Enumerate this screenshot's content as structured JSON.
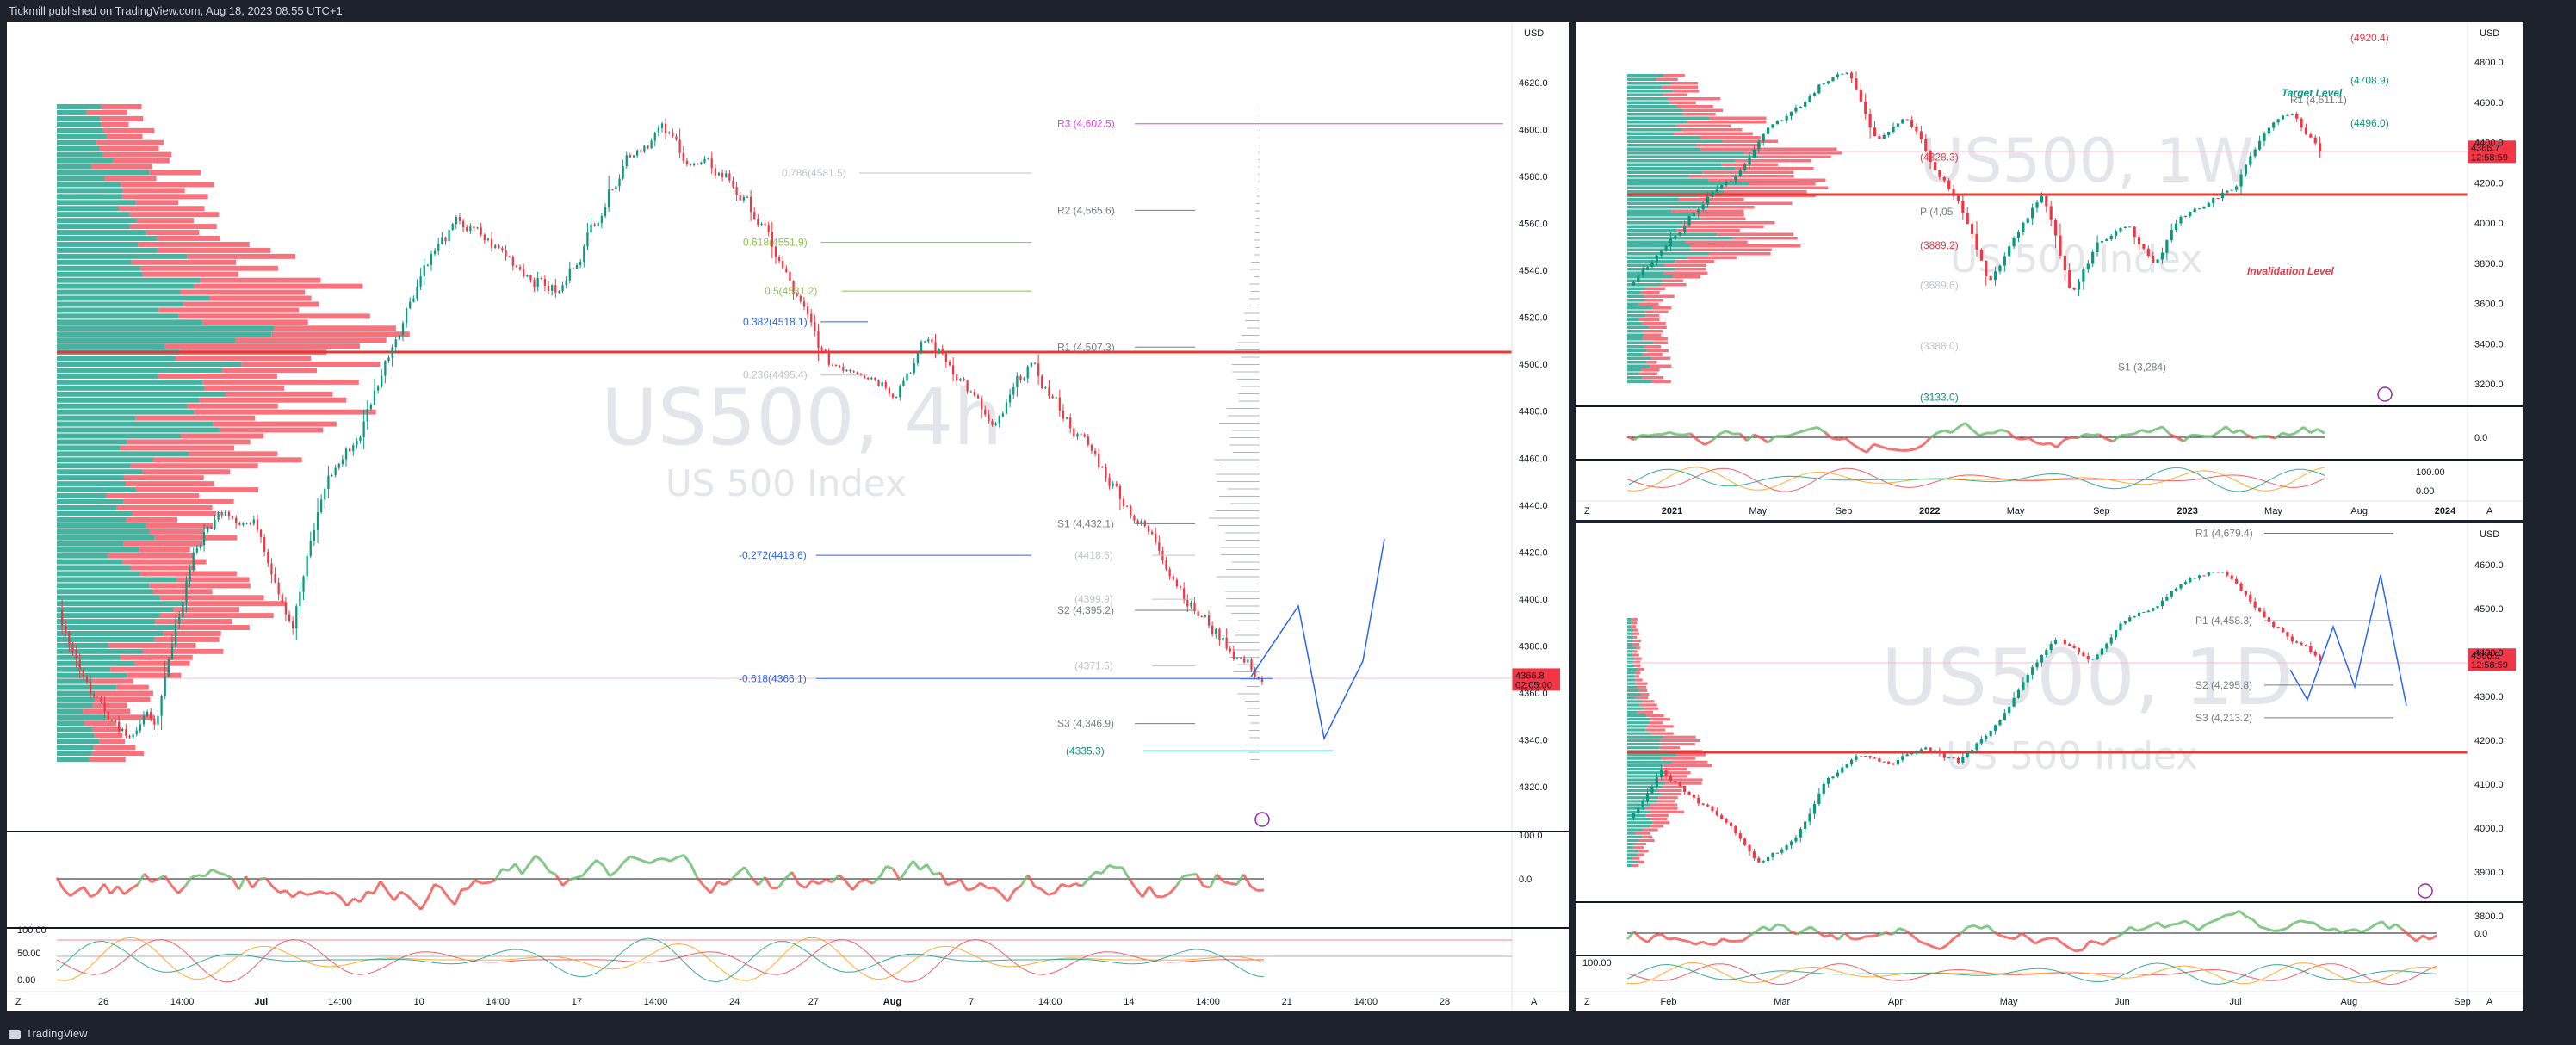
{
  "header": {
    "publisher_line": "Tickmill published on TradingView.com, Aug 18, 2023 08:55 UTC+1"
  },
  "footer": {
    "brand": "TradingView"
  },
  "colors": {
    "bull": "#26a69a",
    "green": "#089981",
    "bear": "#f23645",
    "accent_blue": "#2962ff",
    "pivot": "#787b86",
    "orange": "#ff9800",
    "magenta": "#e040fb",
    "price_tag": "#f23645"
  },
  "main": {
    "watermark_symbol": "US500, 4h",
    "watermark_name": "US 500 Index",
    "currency": "USD",
    "last_price": "4366.8",
    "countdown": "02:05:00",
    "price_axis": [
      "4620.0",
      "4600.0",
      "4580.0",
      "4560.0",
      "4540.0",
      "4520.0",
      "4500.0",
      "4480.0",
      "4460.0",
      "4440.0",
      "4420.0",
      "4400.0",
      "4380.0",
      "4360.0",
      "4340.0",
      "4320.0"
    ],
    "time_axis": [
      "26",
      "14:00",
      "Jul",
      "14:00",
      "10",
      "14:00",
      "17",
      "14:00",
      "24",
      "27",
      "Aug",
      "7",
      "14:00",
      "14",
      "14:00",
      "21",
      "14:00",
      "28"
    ],
    "osc1_axis": [
      "100.0",
      "0.0"
    ],
    "osc2_axis": [
      "100.00",
      "50.00",
      "0.00"
    ],
    "zoom_label": "Z",
    "auto_label": "A",
    "levels": [
      {
        "text": "R3 (4,602.5)",
        "color": "#e040fb"
      },
      {
        "text": "R2 (4,565.6)",
        "color": "#787b86"
      },
      {
        "text": "R1 (4,507.3)",
        "color": "#787b86"
      },
      {
        "text": "S1 (4,432.1)",
        "color": "#787b86"
      },
      {
        "text": "S2 (4,395.2)",
        "color": "#787b86"
      },
      {
        "text": "S3 (4,346.9)",
        "color": "#787b86"
      },
      {
        "text": "(4335.3)",
        "color": "#089981"
      },
      {
        "text": "(4418.6)",
        "color": "#c0c3cc"
      },
      {
        "text": "(4399.9)",
        "color": "#c0c3cc"
      },
      {
        "text": "(4371.5)",
        "color": "#c0c3cc"
      },
      {
        "text": "0.382(4518.1)",
        "color": "#2962ff"
      },
      {
        "text": "-0.272(4418.6)",
        "color": "#2962ff"
      },
      {
        "text": "-0.618(4366.1)",
        "color": "#2962ff"
      },
      {
        "text": "0.786(4581.5)",
        "color": "#c0c3cc"
      },
      {
        "text": "0.618(4551.9)",
        "color": "#8bc34a"
      },
      {
        "text": "0.5(4531.2)",
        "color": "#8bc34a"
      },
      {
        "text": "0.236(4495.4)",
        "color": "#c0c3cc"
      }
    ]
  },
  "weekly": {
    "watermark_symbol": "US500, 1W",
    "watermark_name": "US 500 Index",
    "currency": "USD",
    "last_price": "4366.7",
    "countdown": "12:58:59",
    "price_axis": [
      "4800.0",
      "4600.0",
      "4400.0",
      "4200.0",
      "4000.0",
      "3800.0",
      "3600.0",
      "3400.0",
      "3200.0"
    ],
    "time_axis": [
      "2021",
      "May",
      "Sep",
      "2022",
      "May",
      "Sep",
      "2023",
      "May",
      "Aug",
      "2024"
    ],
    "osc1_axis": [
      "0.0"
    ],
    "osc2_axis": [
      "100.00",
      "0.00"
    ],
    "target_label": "Target Level",
    "invalidation_label": "Invalidation Level",
    "levels": [
      {
        "text": "(4920.4)",
        "color": "#f23645"
      },
      {
        "text": "(4708.9)",
        "color": "#089981"
      },
      {
        "text": "R1 (4,611.1)",
        "color": "#787b86"
      },
      {
        "text": "(4496.0)",
        "color": "#089981"
      },
      {
        "text": "(4328.3)",
        "color": "#f23645"
      },
      {
        "text": "P (4,05",
        "color": "#787b86"
      },
      {
        "text": "(3889.2)",
        "color": "#f23645"
      },
      {
        "text": "(3689.6)",
        "color": "#c0c3cc"
      },
      {
        "text": "(3388.0)",
        "color": "#c0c3cc"
      },
      {
        "text": "S1 (3,284)",
        "color": "#787b86"
      },
      {
        "text": "(3133.0)",
        "color": "#089981"
      }
    ],
    "zoom_label": "Z",
    "auto_label": "A"
  },
  "daily": {
    "watermark_symbol": "US500, 1D",
    "watermark_name": "US 500 Index",
    "currency": "USD",
    "last_price": "4366.9",
    "countdown": "12:58:59",
    "price_axis": [
      "4600.0",
      "4500.0",
      "4400.0",
      "4300.0",
      "4200.0",
      "4100.0",
      "4000.0",
      "3900.0",
      "3800.0"
    ],
    "time_axis": [
      "Feb",
      "Mar",
      "Apr",
      "May",
      "Jun",
      "Jul",
      "Aug",
      "Sep"
    ],
    "osc1_axis": [
      "0.0"
    ],
    "osc2_axis": [
      "100.00"
    ],
    "levels": [
      {
        "text": "R1 (4,679.4)",
        "color": "#787b86"
      },
      {
        "text": "P1 (4,458.3)",
        "color": "#787b86"
      },
      {
        "text": "S2 (4,295.8)",
        "color": "#787b86"
      },
      {
        "text": "S3 (4,213.2)",
        "color": "#787b86"
      }
    ],
    "zoom_label": "Z",
    "auto_label": "A"
  }
}
